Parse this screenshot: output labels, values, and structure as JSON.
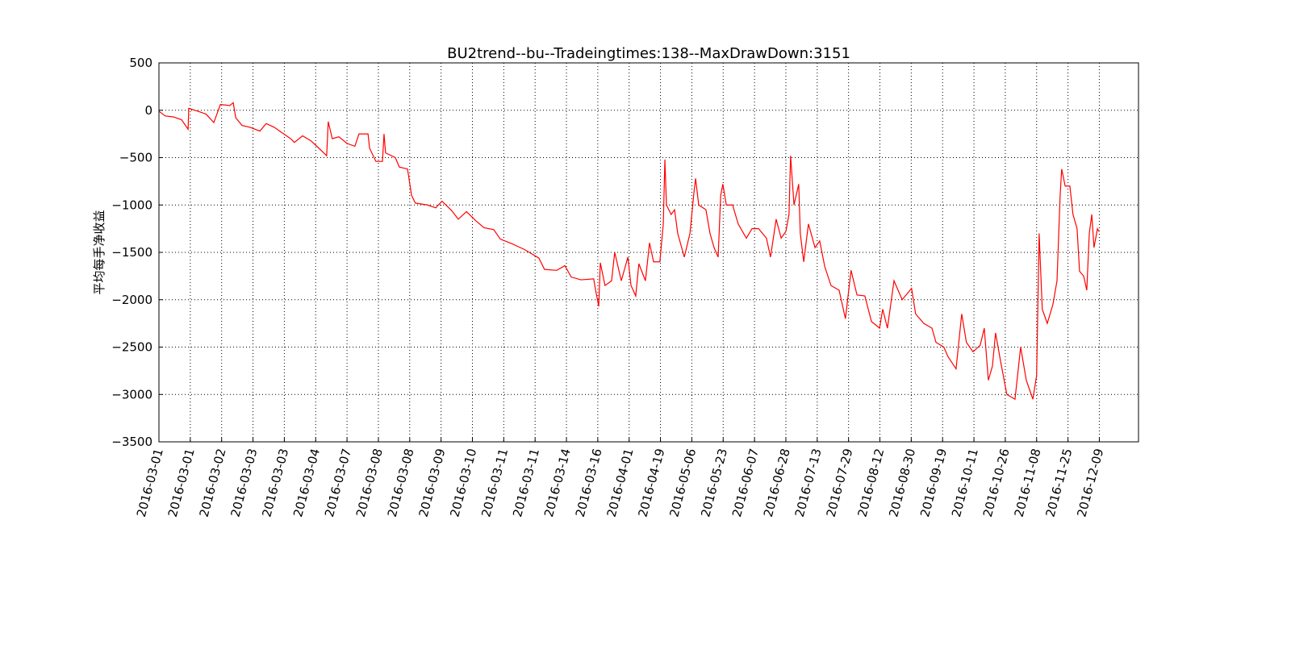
{
  "chart_data": {
    "type": "line",
    "title": "BU2trend--bu--Tradeingtimes:138--MaxDrawDown:3151",
    "y_label": "平均每手净收益",
    "grid": true,
    "xlim": [
      0,
      3125
    ],
    "ylim": [
      -3500,
      500
    ],
    "yticks": [
      500,
      0,
      {
        "value": -500,
        "label": "−500"
      },
      {
        "value": -1000,
        "label": "−1000"
      },
      {
        "value": -1500,
        "label": "−1500"
      },
      {
        "value": -2000,
        "label": "−2000"
      },
      {
        "value": -2500,
        "label": "−2500"
      },
      {
        "value": -3000,
        "label": "−3000"
      },
      {
        "value": -3500,
        "label": "−3500"
      }
    ],
    "xticks": [
      {
        "value": 0,
        "label": "2016-03-01"
      },
      {
        "value": 100,
        "label": "2016-03-01"
      },
      {
        "value": 200,
        "label": "2016-03-02"
      },
      {
        "value": 300,
        "label": "2016-03-03"
      },
      {
        "value": 400,
        "label": "2016-03-03"
      },
      {
        "value": 500,
        "label": "2016-03-04"
      },
      {
        "value": 600,
        "label": "2016-03-07"
      },
      {
        "value": 700,
        "label": "2016-03-08"
      },
      {
        "value": 800,
        "label": "2016-03-08"
      },
      {
        "value": 900,
        "label": "2016-03-09"
      },
      {
        "value": 1000,
        "label": "2016-03-10"
      },
      {
        "value": 1100,
        "label": "2016-03-11"
      },
      {
        "value": 1200,
        "label": "2016-03-11"
      },
      {
        "value": 1300,
        "label": "2016-03-14"
      },
      {
        "value": 1400,
        "label": "2016-03-16"
      },
      {
        "value": 1500,
        "label": "2016-04-01"
      },
      {
        "value": 1600,
        "label": "2016-04-19"
      },
      {
        "value": 1700,
        "label": "2016-05-06"
      },
      {
        "value": 1800,
        "label": "2016-05-23"
      },
      {
        "value": 1900,
        "label": "2016-06-07"
      },
      {
        "value": 2000,
        "label": "2016-06-28"
      },
      {
        "value": 2100,
        "label": "2016-07-13"
      },
      {
        "value": 2200,
        "label": "2016-07-29"
      },
      {
        "value": 2300,
        "label": "2016-08-12"
      },
      {
        "value": 2400,
        "label": "2016-08-30"
      },
      {
        "value": 2500,
        "label": "2016-09-19"
      },
      {
        "value": 2600,
        "label": "2016-10-11"
      },
      {
        "value": 2700,
        "label": "2016-10-26"
      },
      {
        "value": 2800,
        "label": "2016-11-08"
      },
      {
        "value": 2900,
        "label": "2016-11-25"
      },
      {
        "value": 3000,
        "label": "2016-12-09"
      }
    ],
    "series": [
      {
        "color": "#ff0000",
        "x": [
          0,
          20,
          46,
          72,
          93,
          95,
          124,
          150,
          175,
          196,
          226,
          237,
          245,
          265,
          291,
          322,
          342,
          368,
          394,
          420,
          432,
          458,
          484,
          510,
          535,
          540,
          553,
          574,
          600,
          625,
          638,
          667,
          672,
          692,
          713,
          718,
          723,
          754,
          767,
          793,
          806,
          818,
          857,
          883,
          903,
          934,
          955,
          981,
          1012,
          1037,
          1068,
          1089,
          1127,
          1166,
          1212,
          1230,
          1269,
          1295,
          1315,
          1346,
          1387,
          1393,
          1403,
          1408,
          1423,
          1444,
          1454,
          1475,
          1496,
          1506,
          1521,
          1531,
          1552,
          1565,
          1578,
          1598,
          1609,
          1614,
          1619,
          1634,
          1645,
          1655,
          1676,
          1694,
          1707,
          1712,
          1722,
          1745,
          1758,
          1771,
          1784,
          1792,
          1799,
          1810,
          1830,
          1848,
          1874,
          1892,
          1913,
          1938,
          1951,
          1969,
          1985,
          2000,
          2010,
          2015,
          2026,
          2041,
          2046,
          2057,
          2072,
          2093,
          2108,
          2124,
          2144,
          2170,
          2190,
          2208,
          2227,
          2252,
          2273,
          2299,
          2309,
          2324,
          2345,
          2371,
          2401,
          2414,
          2440,
          2466,
          2479,
          2504,
          2517,
          2543,
          2561,
          2576,
          2597,
          2620,
          2633,
          2646,
          2659,
          2669,
          2685,
          2705,
          2731,
          2749,
          2767,
          2788,
          2800,
          2808,
          2818,
          2834,
          2852,
          2865,
          2875,
          2880,
          2891,
          2906,
          2916,
          2929,
          2937,
          2950,
          2960,
          2968,
          2976,
          2983,
          2994,
          2999
        ],
        "values": [
          -10,
          -60,
          -70,
          -100,
          -200,
          20,
          -10,
          -40,
          -130,
          60,
          50,
          80,
          -80,
          -160,
          -180,
          -220,
          -140,
          -180,
          -240,
          -300,
          -340,
          -270,
          -320,
          -400,
          -480,
          -120,
          -300,
          -280,
          -350,
          -380,
          -250,
          -250,
          -400,
          -540,
          -540,
          -250,
          -450,
          -500,
          -600,
          -620,
          -900,
          -980,
          -1000,
          -1030,
          -960,
          -1060,
          -1150,
          -1070,
          -1170,
          -1240,
          -1260,
          -1360,
          -1410,
          -1470,
          -1560,
          -1680,
          -1690,
          -1640,
          -1760,
          -1790,
          -1780,
          -1900,
          -2070,
          -1610,
          -1850,
          -1800,
          -1500,
          -1800,
          -1550,
          -1850,
          -1960,
          -1620,
          -1800,
          -1400,
          -1600,
          -1600,
          -1200,
          -520,
          -1000,
          -1100,
          -1050,
          -1300,
          -1550,
          -1300,
          -860,
          -720,
          -1000,
          -1050,
          -1300,
          -1450,
          -1550,
          -900,
          -780,
          -1000,
          -1000,
          -1200,
          -1350,
          -1250,
          -1250,
          -1350,
          -1550,
          -1150,
          -1350,
          -1280,
          -1100,
          -480,
          -1000,
          -780,
          -1300,
          -1600,
          -1200,
          -1450,
          -1380,
          -1650,
          -1850,
          -1900,
          -2200,
          -1690,
          -1950,
          -1960,
          -2230,
          -2300,
          -2100,
          -2300,
          -1800,
          -2000,
          -1880,
          -2150,
          -2250,
          -2300,
          -2450,
          -2500,
          -2600,
          -2730,
          -2150,
          -2450,
          -2550,
          -2480,
          -2300,
          -2850,
          -2700,
          -2350,
          -2650,
          -3000,
          -3050,
          -2500,
          -2850,
          -3050,
          -2800,
          -1300,
          -2100,
          -2250,
          -2050,
          -1800,
          -900,
          -620,
          -800,
          -800,
          -1100,
          -1250,
          -1700,
          -1750,
          -1900,
          -1300,
          -1100,
          -1450,
          -1250,
          -1280
        ]
      }
    ]
  }
}
